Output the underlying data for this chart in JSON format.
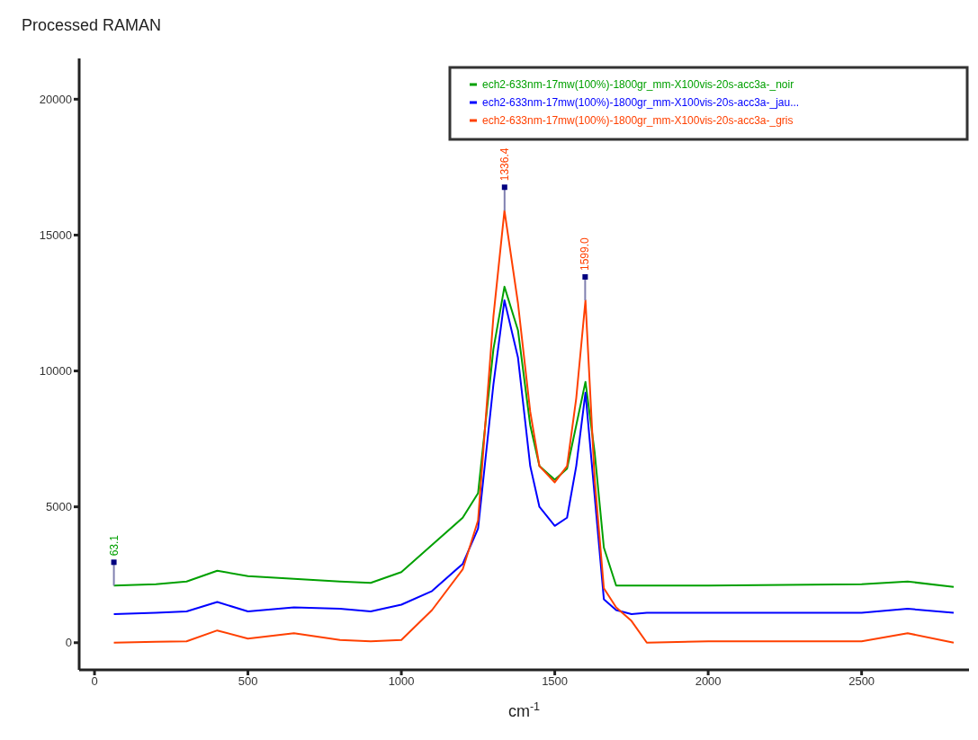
{
  "chart_data": {
    "type": "line",
    "title": "Processed RAMAN",
    "xlabel": "cm$^{-1}$",
    "xlim": [
      -50,
      2850
    ],
    "ylim": [
      -1000,
      21500
    ],
    "xticks": [
      0,
      500,
      1000,
      1500,
      2000,
      2500
    ],
    "yticks": [
      0,
      5000,
      10000,
      15000,
      20000
    ],
    "grid": false,
    "legend": "top right",
    "marker": "none",
    "line_style": "solid",
    "x": [
      63,
      200,
      300,
      400,
      500,
      650,
      800,
      900,
      1000,
      1100,
      1200,
      1250,
      1300,
      1336,
      1380,
      1420,
      1450,
      1500,
      1540,
      1570,
      1600,
      1630,
      1660,
      1700,
      1750,
      1800,
      2000,
      2500,
      2650,
      2800
    ],
    "series": [
      {
        "name": "ech2-633nm-17mw(100%)-1800gr_mm-X100vis-20s-acc3a-_noir",
        "color": "#00a000",
        "values": [
          2100,
          2150,
          2250,
          2650,
          2450,
          2350,
          2250,
          2200,
          2600,
          3600,
          4600,
          5500,
          10800,
          13100,
          11500,
          8000,
          6500,
          6000,
          6400,
          8000,
          9600,
          7000,
          3500,
          2100,
          2100,
          2100,
          2100,
          2150,
          2250,
          2050
        ]
      },
      {
        "name": "ech2-633nm-17mw(100%)-1800gr_mm-X100vis-20s-acc3a-_jau...",
        "color": "#0000ff",
        "values": [
          1050,
          1100,
          1150,
          1500,
          1150,
          1300,
          1250,
          1150,
          1400,
          1900,
          2900,
          4200,
          9500,
          12600,
          10500,
          6500,
          5000,
          4300,
          4600,
          6500,
          9200,
          5400,
          1600,
          1200,
          1050,
          1100,
          1100,
          1100,
          1250,
          1100
        ]
      },
      {
        "name": "ech2-633nm-17mw(100%)-1800gr_mm-X100vis-20s-acc3a-_gris",
        "color": "#ff4000",
        "values": [
          0,
          30,
          50,
          450,
          150,
          350,
          100,
          50,
          100,
          1200,
          2700,
          4500,
          12000,
          15900,
          12500,
          8500,
          6500,
          5900,
          6500,
          9000,
          12600,
          6000,
          2000,
          1300,
          800,
          0,
          50,
          50,
          350,
          0
        ]
      }
    ],
    "annotations": [
      {
        "text": "1336.4",
        "x": 1336.4,
        "y": 15900
      },
      {
        "text": "1599.0",
        "x": 1599,
        "y": 12600
      },
      {
        "text": "63.1",
        "x": 63.1,
        "y": 2100
      }
    ]
  }
}
